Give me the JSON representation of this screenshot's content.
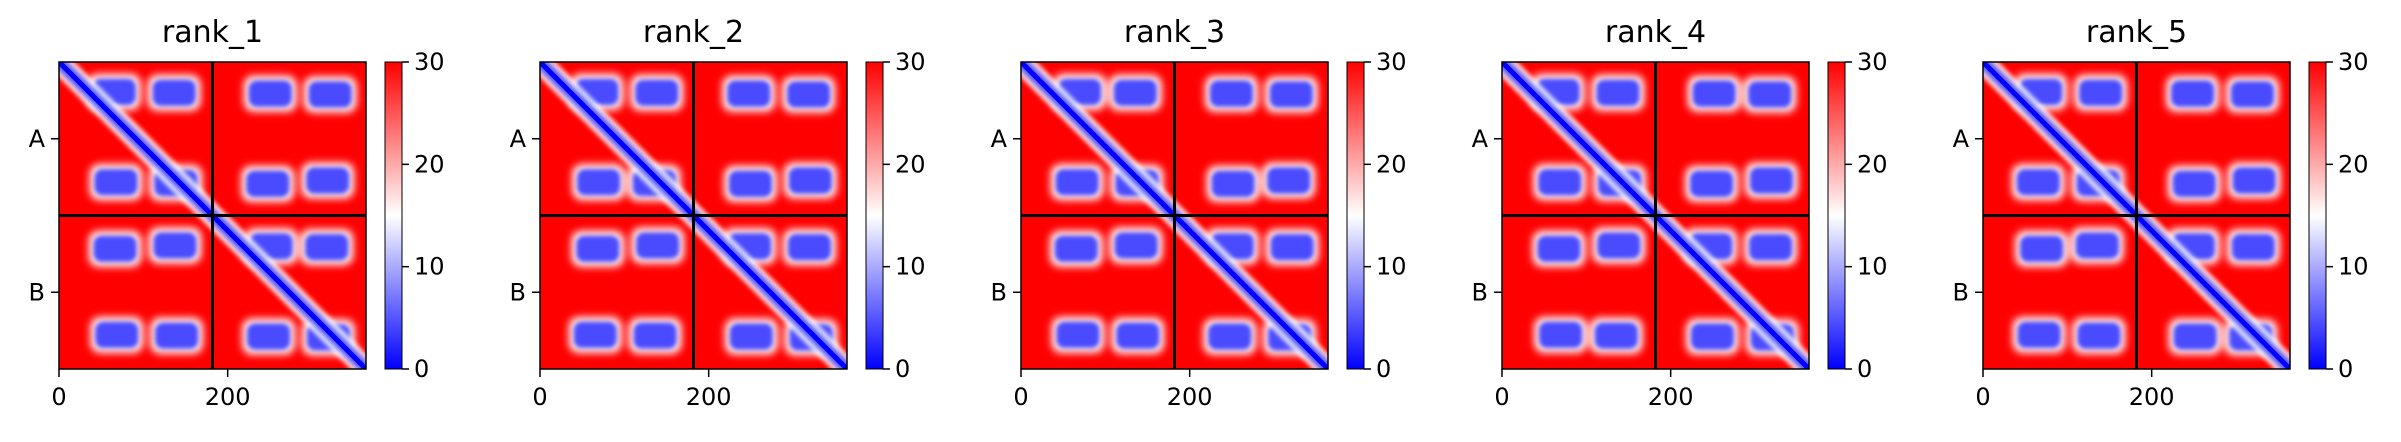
{
  "colors": {
    "low": "#0000ff",
    "mid": "#ffffff",
    "high": "#ff0000",
    "frame": "#000000"
  },
  "chart_data": [
    {
      "type": "heatmap",
      "title": "rank_1",
      "row_labels": [
        "A",
        "B"
      ],
      "x_ticks": [
        0,
        200
      ],
      "colorbar": {
        "min": 0,
        "max": 30,
        "ticks": [
          0,
          10,
          20,
          30
        ]
      },
      "chain_split": 182,
      "length": 364,
      "colormap": "bwr"
    },
    {
      "type": "heatmap",
      "title": "rank_2",
      "row_labels": [
        "A",
        "B"
      ],
      "x_ticks": [
        0,
        200
      ],
      "colorbar": {
        "min": 0,
        "max": 30,
        "ticks": [
          0,
          10,
          20,
          30
        ]
      },
      "chain_split": 182,
      "length": 364,
      "colormap": "bwr"
    },
    {
      "type": "heatmap",
      "title": "rank_3",
      "row_labels": [
        "A",
        "B"
      ],
      "x_ticks": [
        0,
        200
      ],
      "colorbar": {
        "min": 0,
        "max": 30,
        "ticks": [
          0,
          10,
          20,
          30
        ]
      },
      "chain_split": 182,
      "length": 364,
      "colormap": "bwr"
    },
    {
      "type": "heatmap",
      "title": "rank_4",
      "row_labels": [
        "A",
        "B"
      ],
      "x_ticks": [
        0,
        200
      ],
      "colorbar": {
        "min": 0,
        "max": 30,
        "ticks": [
          0,
          10,
          20,
          30
        ]
      },
      "chain_split": 182,
      "length": 364,
      "colormap": "bwr"
    },
    {
      "type": "heatmap",
      "title": "rank_5",
      "row_labels": [
        "A",
        "B"
      ],
      "x_ticks": [
        0,
        200
      ],
      "colorbar": {
        "min": 0,
        "max": 30,
        "ticks": [
          0,
          10,
          20,
          30
        ]
      },
      "chain_split": 182,
      "length": 364,
      "colormap": "bwr"
    }
  ]
}
